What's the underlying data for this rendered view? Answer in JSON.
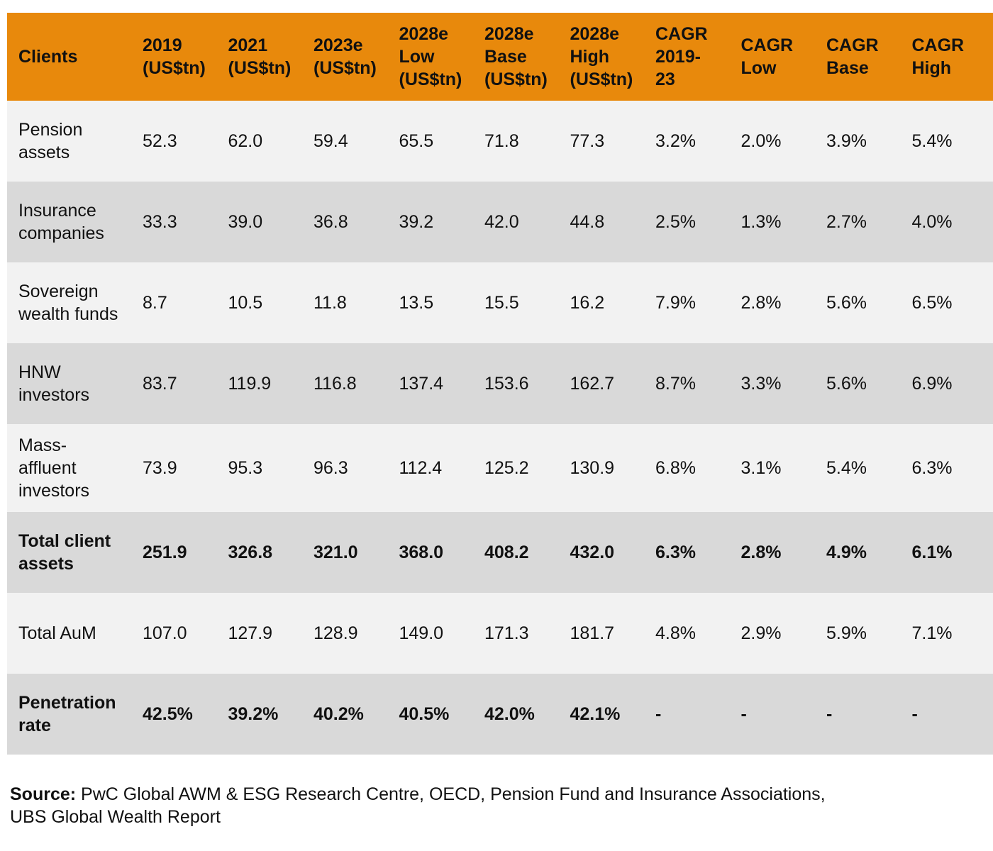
{
  "table": {
    "header": [
      "Clients",
      "2019\n(US$tn)",
      "2021\n(US$tn)",
      "2023e\n(US$tn)",
      "2028e\nLow\n(US$tn)",
      "2028e\nBase\n(US$tn)",
      "2028e\nHigh\n(US$tn)",
      "CAGR\n2019-\n23",
      "CAGR\nLow",
      "CAGR\nBase",
      "CAGR\nHigh"
    ],
    "rows": [
      [
        "Pension\nassets",
        "52.3",
        "62.0",
        "59.4",
        "65.5",
        "71.8",
        "77.3",
        "3.2%",
        "2.0%",
        "3.9%",
        "5.4%"
      ],
      [
        "Insurance\ncompanies",
        "33.3",
        "39.0",
        "36.8",
        "39.2",
        "42.0",
        "44.8",
        "2.5%",
        "1.3%",
        "2.7%",
        "4.0%"
      ],
      [
        "Sovereign\nwealth funds",
        "8.7",
        "10.5",
        "11.8",
        "13.5",
        "15.5",
        "16.2",
        "7.9%",
        "2.8%",
        "5.6%",
        "6.5%"
      ],
      [
        "HNW\ninvestors",
        "83.7",
        "119.9",
        "116.8",
        "137.4",
        "153.6",
        "162.7",
        "8.7%",
        "3.3%",
        "5.6%",
        "6.9%"
      ],
      [
        "Mass-\naffluent\ninvestors",
        "73.9",
        "95.3",
        "96.3",
        "112.4",
        "125.2",
        "130.9",
        "6.8%",
        "3.1%",
        "5.4%",
        "6.3%"
      ],
      [
        "Total client\nassets",
        "251.9",
        "326.8",
        "321.0",
        "368.0",
        "408.2",
        "432.0",
        "6.3%",
        "2.8%",
        "4.9%",
        "6.1%"
      ],
      [
        "Total AuM",
        "107.0",
        "127.9",
        "128.9",
        "149.0",
        "171.3",
        "181.7",
        "4.8%",
        "2.9%",
        "5.9%",
        "7.1%"
      ],
      [
        "Penetration\nrate",
        "42.5%",
        "39.2%",
        "40.2%",
        "40.5%",
        "42.0%",
        "42.1%",
        "-",
        "-",
        "-",
        "-"
      ]
    ]
  },
  "source": {
    "label": "Source:",
    "text": "PwC Global AWM & ESG Research Centre, OECD, Pension Fund and Insurance Associations,\nUBS Global Wealth Report"
  }
}
